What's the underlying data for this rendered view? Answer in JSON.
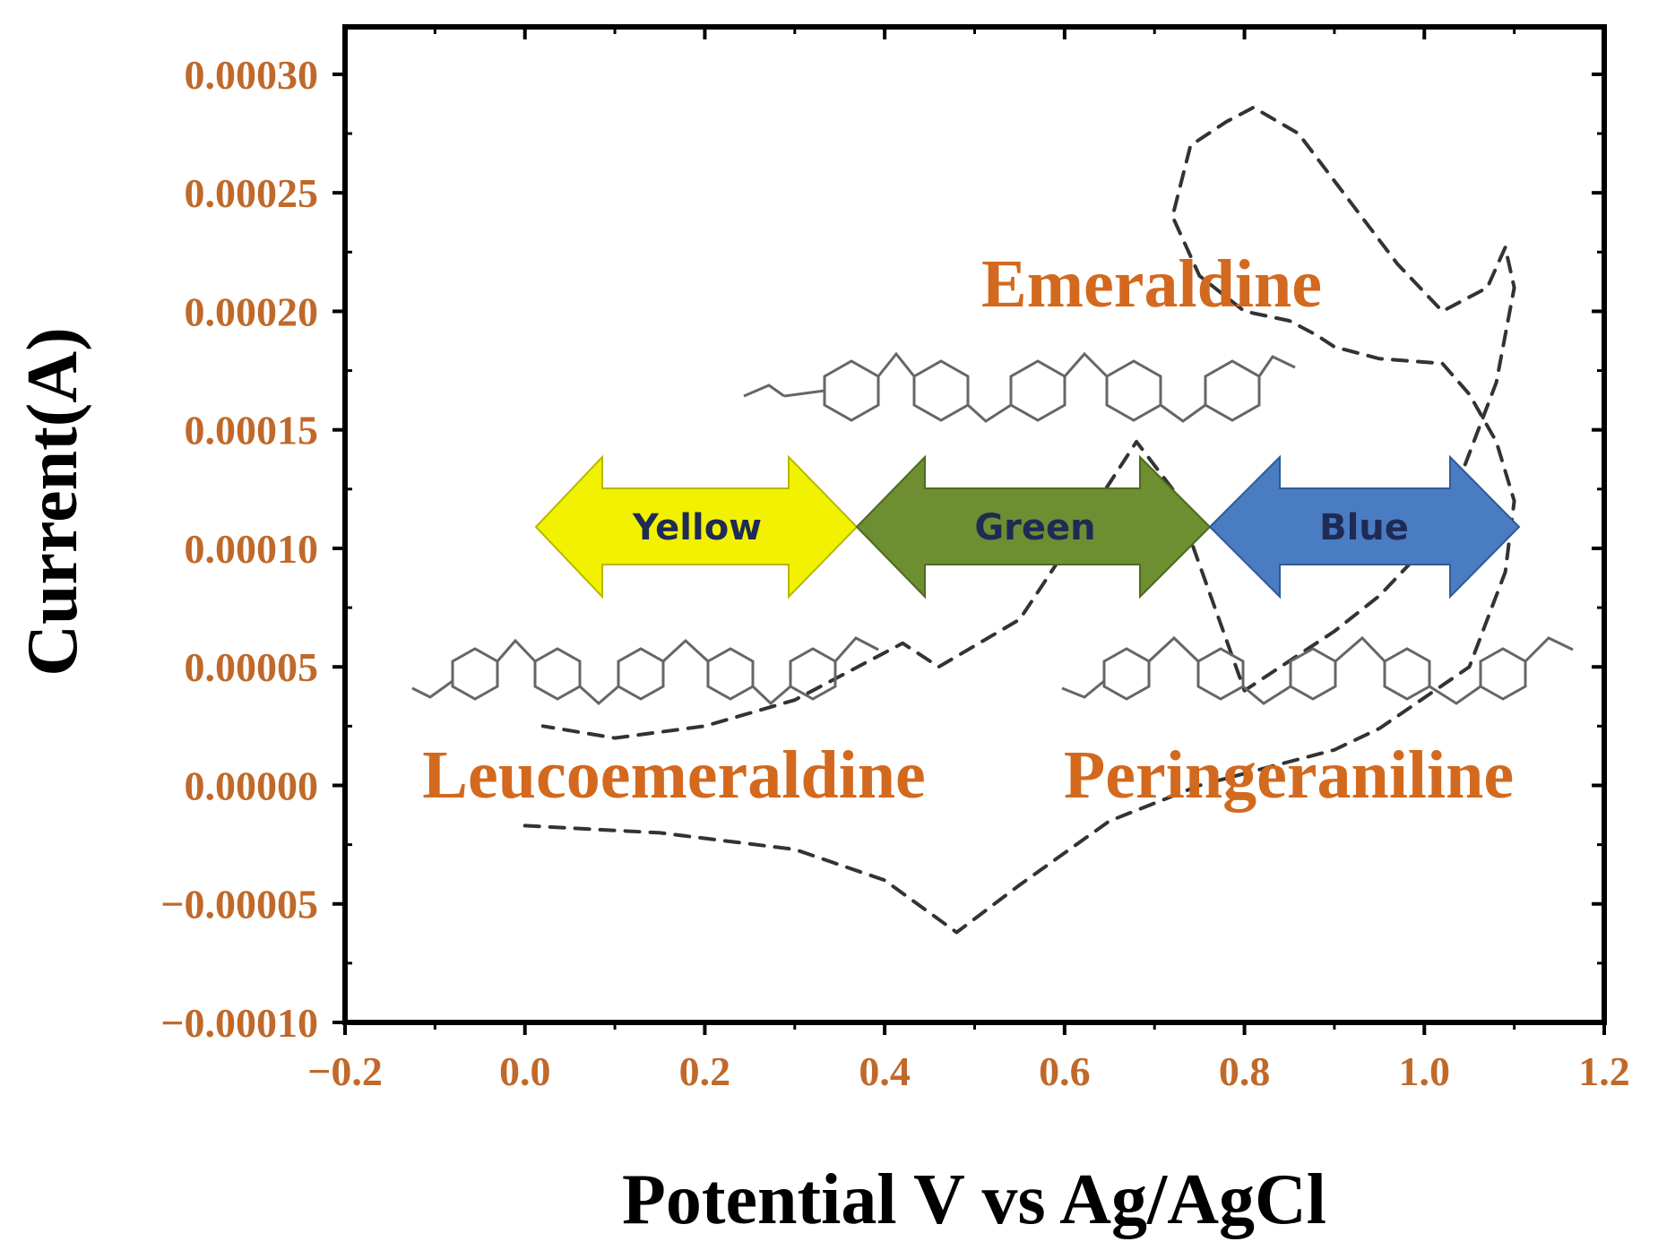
{
  "colors": {
    "tick_label": "#C0692A",
    "state_label": "#D2691E",
    "axis": "#000000",
    "curve": "#333333",
    "molecule": "#666666",
    "yellow_arrow": "#F2F200",
    "green_arrow": "#6E8E32",
    "blue_arrow": "#4A7CC2",
    "arrow_text": "#1F2A55"
  },
  "chart_data": {
    "type": "line",
    "xlabel": "Potential V vs Ag/AgCl",
    "ylabel": "Current(A)",
    "xlim": [
      -0.2,
      1.2
    ],
    "ylim": [
      -0.0001,
      0.00032
    ],
    "x_ticks": [
      -0.2,
      0.0,
      0.2,
      0.4,
      0.6,
      0.8,
      1.0,
      1.2
    ],
    "x_tick_labels": [
      "−0.2",
      "0.0",
      "0.2",
      "0.4",
      "0.6",
      "0.8",
      "1.0",
      "1.2"
    ],
    "y_ticks": [
      0.0003,
      0.00025,
      0.0002,
      0.00015,
      0.0001,
      5e-05,
      0.0,
      -5e-05,
      -0.0001
    ],
    "y_tick_labels": [
      "0.00030",
      "0.00025",
      "0.00020",
      "0.00015",
      "0.00010",
      "0.00005",
      "0.00000",
      "−0.00005",
      "−0.00010"
    ],
    "grid": false,
    "series": [
      {
        "style": "dashed",
        "x": [
          0.0,
          0.15,
          0.3,
          0.4,
          0.48,
          0.55,
          0.65,
          0.75,
          0.85,
          0.9,
          0.95,
          1.05,
          1.07,
          1.09,
          1.1,
          1.08,
          1.05,
          1.02,
          0.95,
          0.9,
          0.88,
          0.85,
          0.8,
          0.75,
          0.72,
          0.74,
          0.78,
          0.81,
          0.86,
          0.91,
          0.97,
          1.02,
          1.07,
          1.09,
          1.1,
          1.08,
          1.04,
          1.0,
          0.95,
          0.9,
          0.8,
          0.72,
          0.68,
          0.62,
          0.55,
          0.46,
          0.42,
          0.3,
          0.2,
          0.1,
          0.02
        ],
        "y": [
          -1.7e-05,
          -2e-05,
          -2.7e-05,
          -4e-05,
          -6.2e-05,
          -4.2e-05,
          -1.5e-05,
          0.0,
          1e-05,
          1.5e-05,
          2.4e-05,
          5e-05,
          7e-05,
          9e-05,
          0.00012,
          0.000145,
          0.000165,
          0.000178,
          0.00018,
          0.000185,
          0.00019,
          0.000196,
          0.0002,
          0.000215,
          0.00024,
          0.00027,
          0.00028,
          0.000286,
          0.000275,
          0.00025,
          0.00022,
          0.0002,
          0.00021,
          0.000227,
          0.00021,
          0.00017,
          0.00013,
          0.0001,
          8e-05,
          6.5e-05,
          4e-05,
          0.000125,
          0.000145,
          0.00011,
          7e-05,
          5e-05,
          6e-05,
          3.6e-05,
          2.5e-05,
          2e-05,
          2.5e-05
        ]
      }
    ]
  },
  "annotations": {
    "emeraldine": "Emeraldine",
    "leucoemeraldine": "Leucoemeraldine",
    "peringeraniline": "Peringeraniline",
    "yellow": "Yellow",
    "green": "Green",
    "blue": "Blue"
  }
}
